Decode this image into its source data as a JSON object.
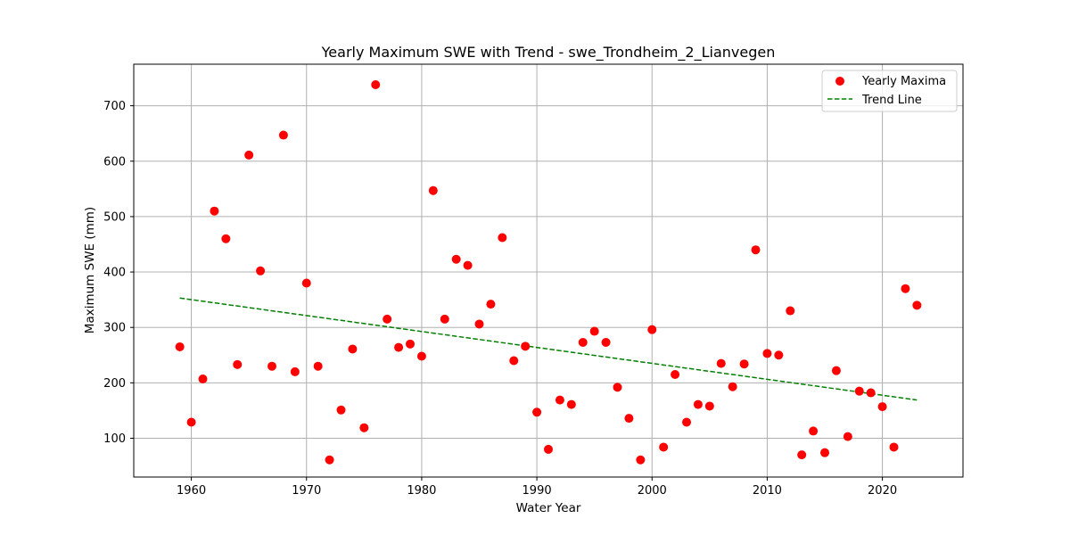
{
  "chart_data": {
    "type": "scatter",
    "title": "Yearly Maximum SWE with Trend - swe_Trondheim_2_Lianvegen",
    "xlabel": "Water Year",
    "ylabel": "Maximum SWE (mm)",
    "xlim": [
      1955,
      2027
    ],
    "ylim": [
      30,
      775
    ],
    "xticks": [
      1960,
      1970,
      1980,
      1990,
      2000,
      2010,
      2020
    ],
    "yticks": [
      100,
      200,
      300,
      400,
      500,
      600,
      700
    ],
    "grid": true,
    "legend_position": "top-right",
    "series": [
      {
        "name": "Yearly Maxima",
        "kind": "scatter",
        "color": "#ff0000",
        "x": [
          1959,
          1960,
          1961,
          1962,
          1963,
          1964,
          1965,
          1966,
          1967,
          1968,
          1969,
          1970,
          1971,
          1972,
          1973,
          1974,
          1975,
          1976,
          1977,
          1978,
          1979,
          1980,
          1981,
          1982,
          1983,
          1984,
          1985,
          1986,
          1987,
          1988,
          1989,
          1990,
          1991,
          1992,
          1993,
          1994,
          1995,
          1996,
          1997,
          1998,
          1999,
          2000,
          2001,
          2002,
          2003,
          2004,
          2005,
          2006,
          2007,
          2008,
          2009,
          2010,
          2011,
          2012,
          2013,
          2014,
          2015,
          2016,
          2017,
          2018,
          2019,
          2020,
          2021,
          2022,
          2023
        ],
        "y": [
          265,
          129,
          207,
          510,
          460,
          233,
          611,
          402,
          230,
          647,
          220,
          380,
          230,
          61,
          151,
          261,
          119,
          738,
          315,
          264,
          270,
          248,
          547,
          315,
          423,
          412,
          306,
          342,
          462,
          240,
          266,
          147,
          80,
          169,
          161,
          273,
          293,
          273,
          192,
          136,
          61,
          296,
          84,
          215,
          129,
          161,
          158,
          235,
          193,
          234,
          440,
          253,
          250,
          330,
          70,
          113,
          74,
          222,
          103,
          185,
          182,
          157,
          84,
          370,
          340
        ]
      },
      {
        "name": "Trend Line",
        "kind": "line",
        "style": "dashed",
        "color": "#008000",
        "x": [
          1959,
          2023
        ],
        "y": [
          353,
          169
        ]
      }
    ]
  }
}
